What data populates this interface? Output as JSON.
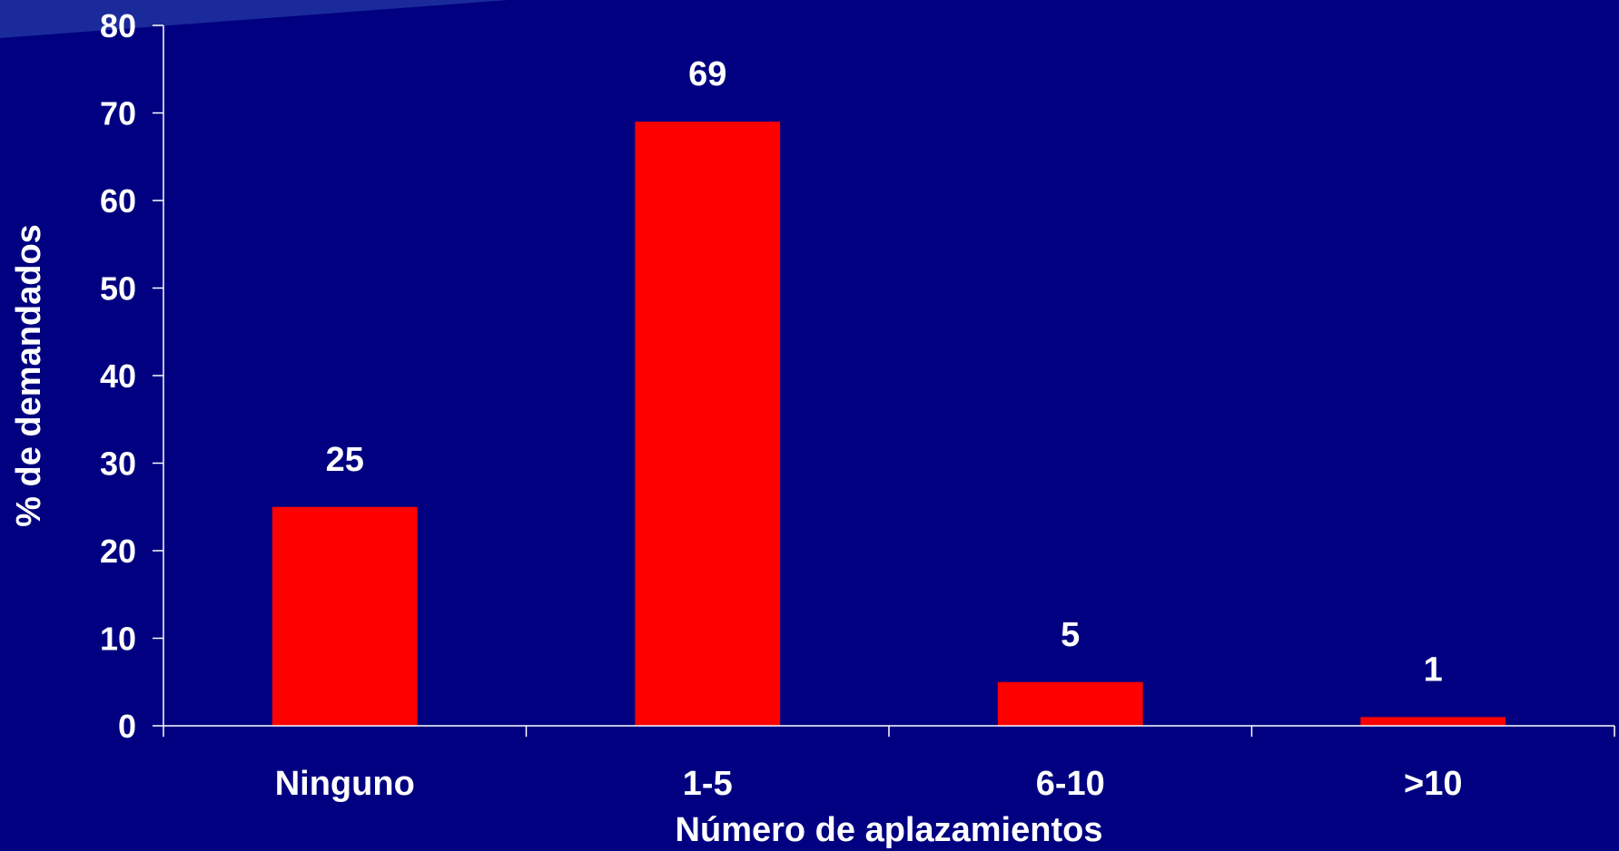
{
  "chart_data": {
    "type": "bar",
    "categories": [
      "Ninguno",
      "1-5",
      "6-10",
      ">10"
    ],
    "values": [
      25,
      69,
      5,
      1
    ],
    "data_labels": [
      "25",
      "69",
      "5",
      "1"
    ],
    "title": "",
    "xlabel": "Número de aplazamientos",
    "ylabel": "% de demandados",
    "ylim": [
      0,
      80
    ],
    "yticks": [
      0,
      10,
      20,
      30,
      40,
      50,
      60,
      70,
      80
    ],
    "ytick_labels": [
      "0",
      "10",
      "20",
      "30",
      "40",
      "50",
      "60",
      "70",
      "80"
    ],
    "grid": false,
    "legend": "none"
  },
  "colors": {
    "background": "#000080",
    "bar": "#ff0000",
    "text": "#ffffff",
    "axis": "#ffffff"
  }
}
